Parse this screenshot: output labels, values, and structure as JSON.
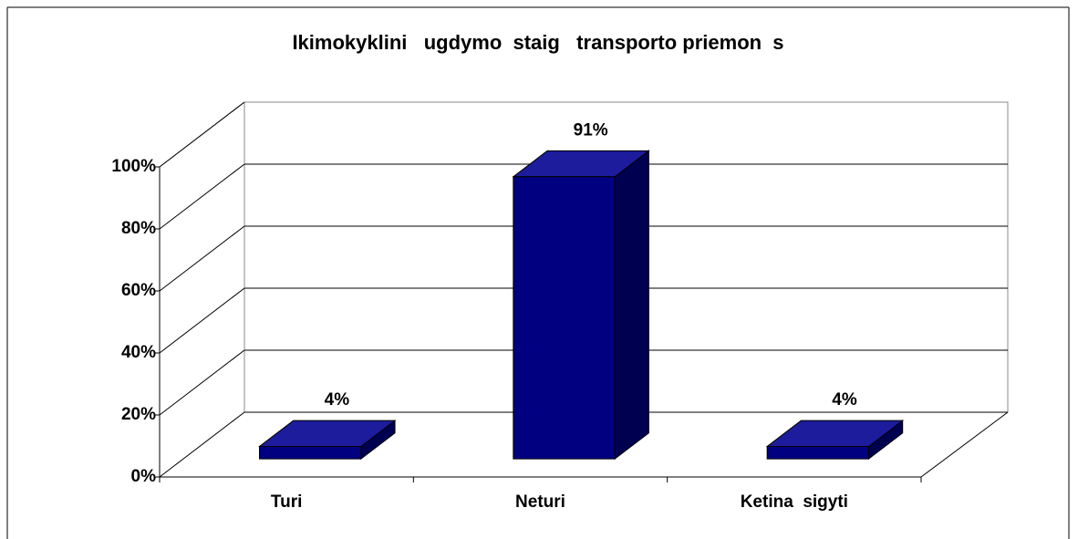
{
  "chart_data": {
    "type": "bar3d",
    "title": "Ikimokyklini   ugdymo  staig   transporto priemon  s",
    "categories": [
      "Turi",
      "Neturi",
      "Ketina  sigyti"
    ],
    "values": [
      4,
      91,
      4
    ],
    "value_labels": [
      "4%",
      "91%",
      "4%"
    ],
    "color": "#000080",
    "ylim": [
      0,
      100
    ],
    "yticks": [
      {
        "value": 0,
        "label": "0%"
      },
      {
        "value": 20,
        "label": "20%"
      },
      {
        "value": 40,
        "label": "40%"
      },
      {
        "value": 60,
        "label": "60%"
      },
      {
        "value": 80,
        "label": "80%"
      },
      {
        "value": 100,
        "label": "100%"
      }
    ],
    "grid": true
  }
}
